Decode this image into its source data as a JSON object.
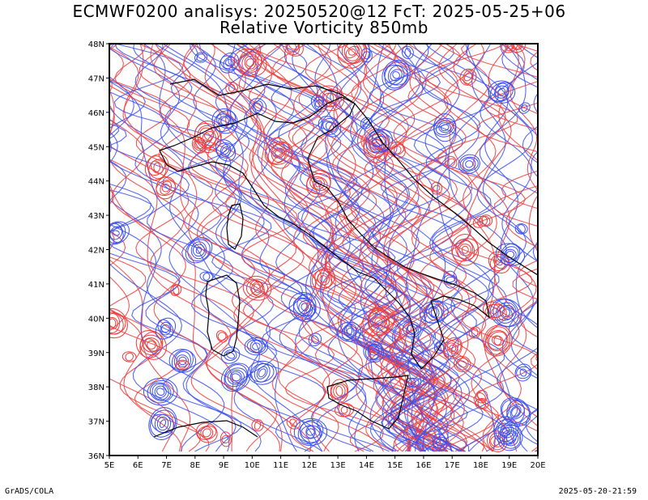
{
  "title": {
    "line1": "ECMWF0200 analisys: 20250520@12 FcT: 2025-05-25+06",
    "line2": "Relative Vorticity 850mb"
  },
  "map": {
    "lon_range": [
      5,
      20
    ],
    "lat_range": [
      36,
      48
    ],
    "lon_ticks": [
      "5E",
      "6E",
      "7E",
      "8E",
      "9E",
      "10E",
      "11E",
      "12E",
      "13E",
      "14E",
      "15E",
      "16E",
      "17E",
      "18E",
      "19E",
      "20E"
    ],
    "lat_ticks": [
      "36N",
      "37N",
      "38N",
      "39N",
      "40N",
      "41N",
      "42N",
      "43N",
      "44N",
      "45N",
      "46N",
      "47N",
      "48N"
    ],
    "colors": {
      "positive_contour": "#f03c3c",
      "negative_contour": "#3c50f0",
      "coastline": "#000000",
      "frame": "#000000"
    }
  },
  "footer": {
    "left": "GrADS/COLA",
    "right": "2025-05-20-21:59"
  }
}
